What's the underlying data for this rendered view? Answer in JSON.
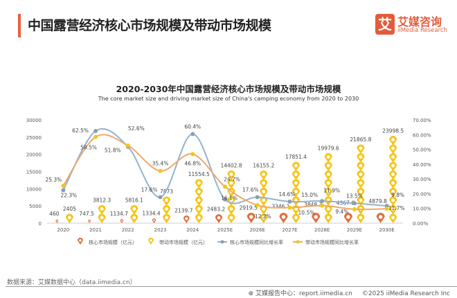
{
  "header": {
    "title": "中国露营经济核心市场规模及带动市场规模",
    "logo_cn": "艾媒咨询",
    "logo_en": "iiMedia Research",
    "logo_mark": "艾"
  },
  "chart_data": {
    "type": "bar+line",
    "title": "2020-2030年中国露营经济核心市场规模及带动市场规模",
    "subtitle": "The core market size and driving market size of China's camping economy from 2020 to 2030",
    "categories": [
      "2020",
      "2021",
      "2022",
      "2023",
      "2024",
      "2025E",
      "2026E",
      "2027E",
      "2028E",
      "2029E",
      "2030E"
    ],
    "left_axis": {
      "range": [
        0,
        30000
      ],
      "ticks": [
        "0",
        "5000",
        "10000",
        "15000",
        "20000",
        "25000",
        "30000"
      ]
    },
    "right_axis": {
      "range": [
        0,
        70
      ],
      "ticks": [
        "0.00%",
        "10.00%",
        "20.00%",
        "30.00%",
        "40.00%",
        "50.00%",
        "60.00%",
        "70.00%"
      ]
    },
    "series": [
      {
        "name": "核心市场规模（亿元）",
        "type": "pictorial-bar",
        "axis": "left",
        "color": "#e0703c",
        "values": [
          460,
          747.5,
          1134.7,
          1334.4,
          2139.7,
          2483.2,
          2919.5,
          3346.1,
          3848.3,
          4367.6,
          4879.8
        ],
        "labels": [
          "460",
          "747.5",
          "1134.7",
          "1334.4",
          "2139.7",
          "2483.2",
          "2919.5",
          "3346.1",
          "3848.3",
          "4367.6",
          "4879.8"
        ]
      },
      {
        "name": "带动市场规模（亿元）",
        "type": "pictorial-bar",
        "axis": "right-stack",
        "color": "#f5c518",
        "values": [
          2405,
          3812.3,
          5816.1,
          7873,
          11554.5,
          14402.8,
          16155.2,
          17851.4,
          19979.6,
          21865.8,
          23998.5
        ],
        "labels": [
          "2405",
          "3812.3",
          "5816.1",
          "7873",
          "11554.5",
          "14402.8",
          "16155.2",
          "17851.4",
          "19979.6",
          "21865.8",
          "23998.5"
        ]
      },
      {
        "name": "核心市场规模同比增长率",
        "type": "line",
        "axis": "right",
        "color": "#8fb3d4",
        "values": [
          22.3,
          62.5,
          51.8,
          17.6,
          60.4,
          16.1,
          17.6,
          14.6,
          15.0,
          13.5,
          11.7
        ],
        "labels": [
          "22.3%",
          "62.5%",
          "51.8%",
          "17.6%",
          "60.4%",
          "16.1%",
          "17.6%",
          "14.6%",
          "15.0%",
          "13.5%",
          "11.7%"
        ]
      },
      {
        "name": "带动市场规模同比增长率",
        "type": "line",
        "axis": "right",
        "color": "#f0a86a",
        "values": [
          25.3,
          58.5,
          52.6,
          35.4,
          46.8,
          24.7,
          12.2,
          10.5,
          11.9,
          9.4,
          9.8
        ],
        "labels": [
          "25.3%",
          "58.5%",
          "52.6%",
          "35.4%",
          "46.8%",
          "24.7%",
          "12.2%",
          "10.5%",
          "11.9%",
          "9.4%",
          "9.8%"
        ]
      }
    ],
    "legend": "bottom"
  },
  "footer": {
    "source": "数据来源：艾媒数据中心（data.iimedia.cn）",
    "report": "艾媒报告中心：report.iimedia.cn",
    "copyright": "©2025  iiMedia Research  Inc"
  }
}
